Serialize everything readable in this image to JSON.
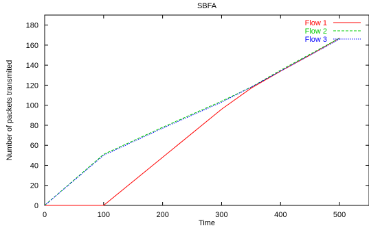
{
  "chart_data": {
    "type": "line",
    "title": "SBFA",
    "xlabel": "Time",
    "ylabel": "Number of packets transmited",
    "xlim": [
      0,
      550
    ],
    "ylim": [
      0,
      190
    ],
    "xticks": [
      0,
      100,
      200,
      300,
      400,
      500
    ],
    "yticks": [
      0,
      20,
      40,
      60,
      80,
      100,
      120,
      140,
      160,
      180
    ],
    "grid": false,
    "legend_position": "top-right",
    "series": [
      {
        "name": "Flow 1",
        "color": "#ff0000",
        "dash": "solid",
        "x": [
          0,
          100,
          300,
          350,
          400,
          450,
          500
        ],
        "y": [
          0,
          0,
          96,
          117,
          134,
          150,
          167
        ]
      },
      {
        "name": "Flow 2",
        "color": "#00cc00",
        "dash": "dashed",
        "x": [
          0,
          100,
          200,
          300,
          350,
          400,
          450,
          500
        ],
        "y": [
          0,
          51,
          78,
          104,
          118,
          135,
          151,
          167
        ]
      },
      {
        "name": "Flow 3",
        "color": "#0000ff",
        "dash": "dotted",
        "x": [
          0,
          100,
          200,
          300,
          350,
          400,
          450,
          500
        ],
        "y": [
          0,
          50,
          77,
          103,
          118,
          134,
          150,
          166
        ]
      }
    ]
  }
}
